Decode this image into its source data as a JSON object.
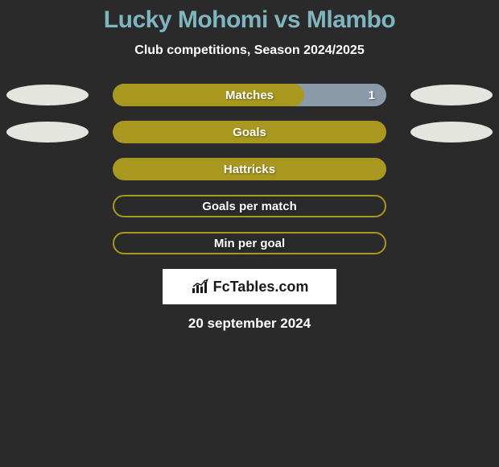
{
  "title": "Lucky Mohomi vs Mlambo",
  "subtitle": "Club competitions, Season 2024/2025",
  "colors": {
    "background": "#2a2a2a",
    "title": "#7fb5bf",
    "text": "#ffffff",
    "bar_fill": "#a89820",
    "bar_alt": "#8a9aa8",
    "ellipse": "#e5e5e0",
    "brand_bg": "#ffffff",
    "brand_text": "#1a1a1a"
  },
  "rows": [
    {
      "label": "Matches",
      "left_ellipse": true,
      "right_ellipse": true,
      "value": "1",
      "fill_pct": 70,
      "style": "split"
    },
    {
      "label": "Goals",
      "left_ellipse": true,
      "right_ellipse": true,
      "value": "",
      "fill_pct": 100,
      "style": "solid"
    },
    {
      "label": "Hattricks",
      "left_ellipse": false,
      "right_ellipse": false,
      "value": "",
      "fill_pct": 100,
      "style": "solid"
    },
    {
      "label": "Goals per match",
      "left_ellipse": false,
      "right_ellipse": false,
      "value": "",
      "fill_pct": 0,
      "style": "outline"
    },
    {
      "label": "Min per goal",
      "left_ellipse": false,
      "right_ellipse": false,
      "value": "",
      "fill_pct": 0,
      "style": "outline"
    }
  ],
  "brand": "FcTables.com",
  "date": "20 september 2024"
}
